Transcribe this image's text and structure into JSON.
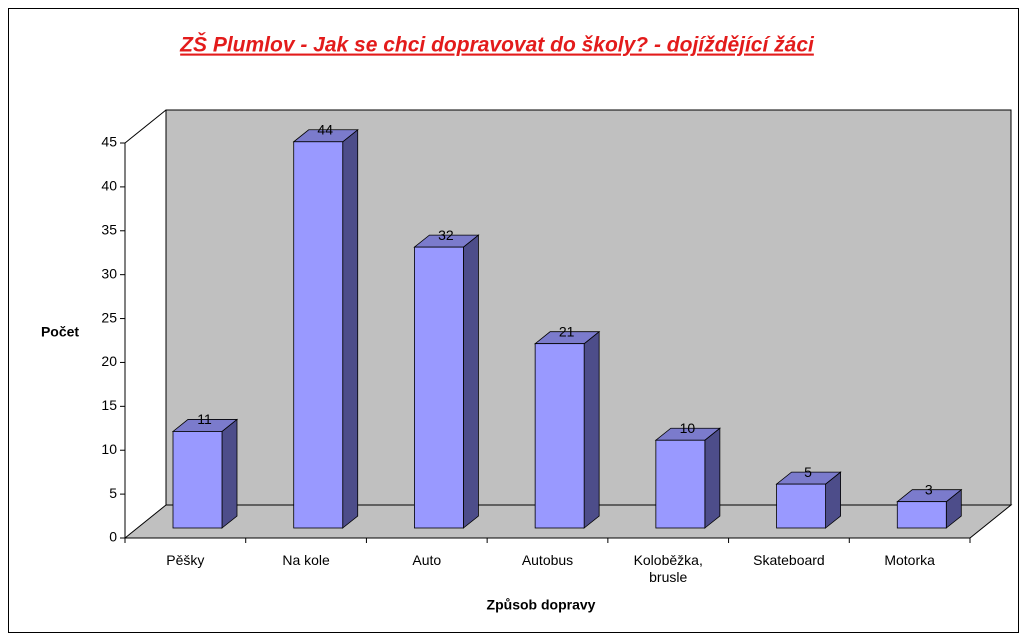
{
  "chart_data": {
    "type": "bar3d",
    "title": "ZŠ Plumlov - Jak se chci dopravovat do školy? - dojíždějící žáci",
    "x_label": "Způsob dopravy",
    "y_label": "Počet",
    "categories": [
      "Pěšky",
      "Na kole",
      "Auto",
      "Autobus",
      "Koloběžka, brusle",
      "Skateboard",
      "Motorka"
    ],
    "values": [
      11,
      44,
      32,
      21,
      10,
      5,
      3
    ],
    "color": "#9999ff",
    "wall_color": "#c0c0c0",
    "ylim": [
      0,
      45
    ],
    "yticks": [
      0,
      5,
      10,
      15,
      20,
      25,
      30,
      35,
      40,
      45
    ]
  }
}
